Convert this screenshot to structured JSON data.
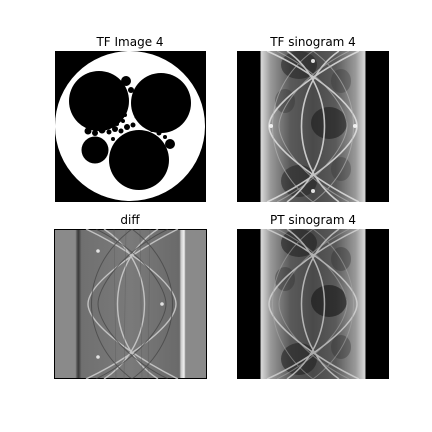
{
  "panels": {
    "tf_image": {
      "title": "TF Image 4"
    },
    "tf_sinogram": {
      "title": "TF sinogram 4"
    },
    "diff": {
      "title": "diff"
    },
    "pt_sinogram": {
      "title": "PT sinogram 4"
    }
  }
}
